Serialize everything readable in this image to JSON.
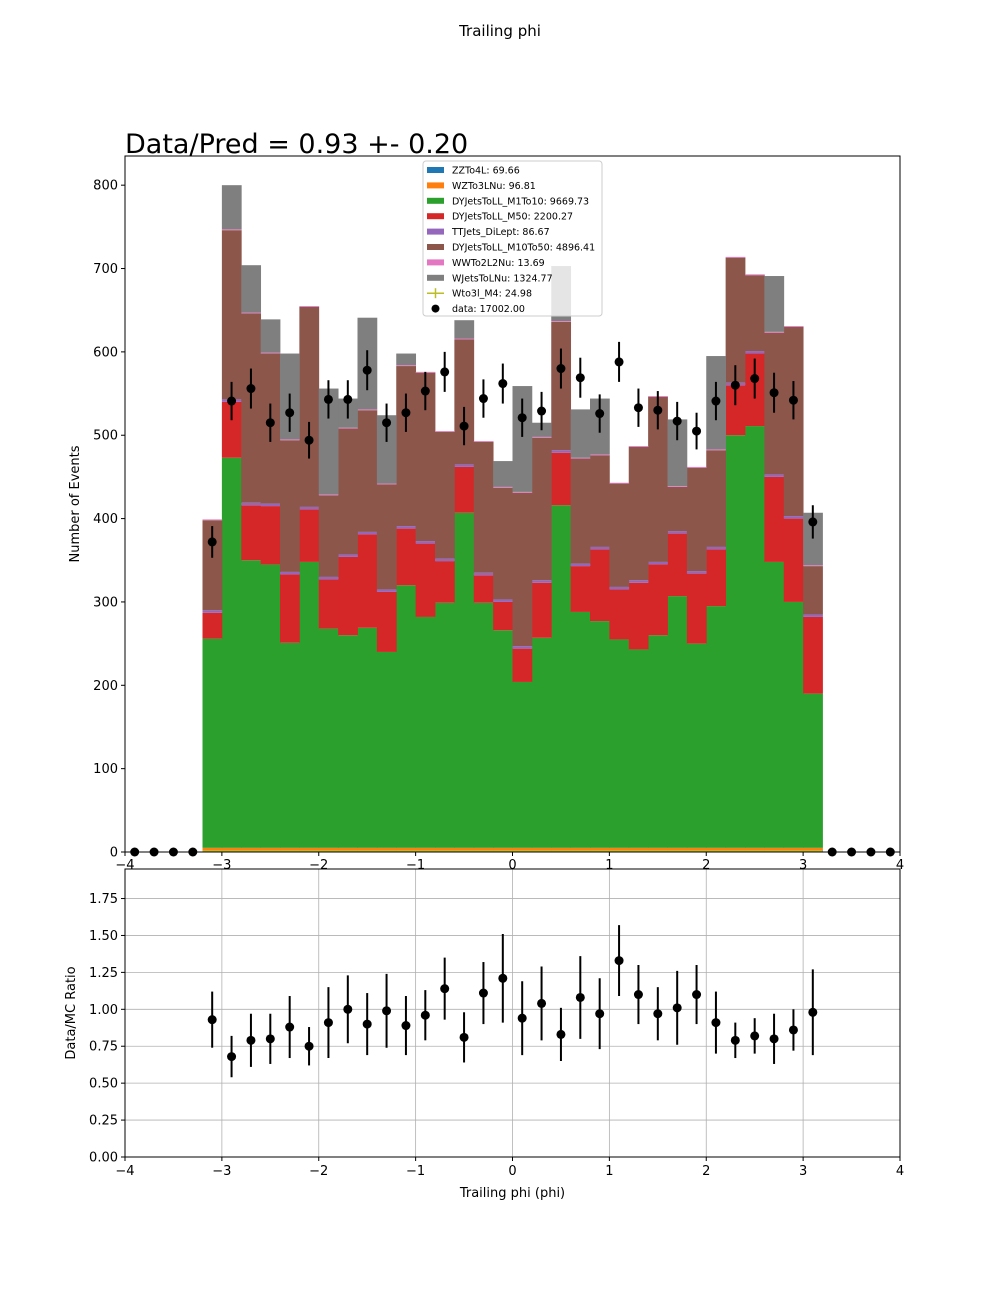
{
  "figure": {
    "title": "Trailing phi",
    "annotation": "Data/Pred = 0.93 +- 0.20"
  },
  "chart_data": [
    {
      "type": "bar",
      "stacked": true,
      "ylabel": "Number of Events",
      "xlim": [
        -4,
        4
      ],
      "ylim": [
        0,
        835
      ],
      "xticks": [
        "−4",
        "−3",
        "−2",
        "−1",
        "0",
        "1",
        "2",
        "3",
        "4"
      ],
      "yticks": [
        "0",
        "100",
        "200",
        "300",
        "400",
        "500",
        "600",
        "700",
        "800"
      ],
      "legend_position": "upper center",
      "bin_edges": [
        -3.2,
        -3.0,
        -2.8,
        -2.6,
        -2.4,
        -2.2,
        -2.0,
        -1.8,
        -1.6,
        -1.4,
        -1.2,
        -1.0,
        -0.8,
        -0.6,
        -0.4,
        -0.2,
        0.0,
        0.2,
        0.4,
        0.6,
        0.8,
        1.0,
        1.2,
        1.4,
        1.6,
        1.8,
        2.0,
        2.2,
        2.4,
        2.6,
        2.8,
        3.0,
        3.2
      ],
      "series": [
        {
          "name": "ZZTo4L: 69.66",
          "color": "#1f77b4",
          "values": [
            2,
            2,
            2,
            2,
            2,
            2,
            2,
            2,
            2,
            2,
            2,
            2,
            2,
            2,
            2,
            2,
            2,
            2,
            2,
            2,
            2,
            2,
            2,
            2,
            2,
            2,
            2,
            2,
            2,
            2,
            2,
            2
          ]
        },
        {
          "name": "WZTo3LNu: 96.81",
          "color": "#ff7f0e",
          "values": [
            3,
            3,
            3,
            3,
            3,
            3,
            3,
            3,
            3,
            3,
            3,
            3,
            3,
            3,
            3,
            3,
            3,
            3,
            3,
            3,
            3,
            3,
            3,
            3,
            3,
            3,
            3,
            3,
            3,
            3,
            3,
            3
          ]
        },
        {
          "name": "DYJetsToLL_M1To10: 9669.73",
          "color": "#2ca02c",
          "values": [
            251,
            468,
            345,
            340,
            246,
            343,
            263,
            255,
            264,
            235,
            315,
            277,
            294,
            402,
            294,
            261,
            199,
            252,
            411,
            283,
            272,
            250,
            238,
            255,
            302,
            245,
            290,
            495,
            506,
            343,
            295,
            185
          ]
        },
        {
          "name": "DYJetsToLL_M50: 2200.27",
          "color": "#d62728",
          "values": [
            31,
            67,
            66,
            70,
            82,
            63,
            59,
            94,
            112,
            72,
            68,
            88,
            50,
            55,
            33,
            34,
            40,
            66,
            63,
            55,
            86,
            60,
            80,
            85,
            75,
            84,
            68,
            60,
            87,
            102,
            100,
            92
          ]
        },
        {
          "name": "TTJets_DiLept: 86.67",
          "color": "#9467bd",
          "values": [
            3,
            3,
            3,
            3,
            3,
            3,
            3,
            3,
            3,
            3,
            3,
            3,
            3,
            3,
            3,
            3,
            3,
            3,
            3,
            3,
            3,
            3,
            3,
            3,
            3,
            3,
            3,
            3,
            3,
            3,
            3,
            3
          ]
        },
        {
          "name": "DYJetsToLL_M10To50: 4896.41",
          "color": "#8c564b",
          "values": [
            108,
            203,
            227,
            180,
            158,
            240,
            98,
            151,
            146,
            126,
            192,
            202,
            152,
            150,
            157,
            134,
            184,
            171,
            154,
            126,
            110,
            124,
            160,
            198,
            53,
            124,
            116,
            150,
            91,
            170,
            227,
            58
          ]
        },
        {
          "name": "WWTo2L2Nu: 13.69",
          "color": "#e377c2",
          "values": [
            1,
            1,
            1,
            1,
            1,
            1,
            1,
            1,
            1,
            1,
            1,
            1,
            1,
            1,
            1,
            1,
            1,
            1,
            1,
            1,
            1,
            1,
            1,
            1,
            1,
            1,
            1,
            1,
            1,
            1,
            1,
            1
          ]
        },
        {
          "name": "WJetsToLNu: 1324.77",
          "color": "#7f7f7f",
          "values": [
            0,
            53,
            57,
            40,
            103,
            0,
            127,
            35,
            110,
            82,
            14,
            0,
            0,
            22,
            0,
            31,
            127,
            17,
            66,
            58,
            67,
            0,
            0,
            0,
            80,
            0,
            112,
            0,
            0,
            67,
            0,
            63
          ]
        }
      ],
      "signal": {
        "name": "Wto3l_M4: 24.98",
        "color": "#bcbd22",
        "values": [
          1,
          1,
          1,
          1,
          1,
          1,
          1,
          1,
          1,
          1,
          1,
          1,
          1,
          1,
          1,
          1,
          1,
          1,
          1,
          1,
          1,
          1,
          1,
          1,
          1,
          1,
          1,
          1,
          1,
          1,
          1,
          1
        ]
      },
      "data": {
        "name": "data: 17002.00",
        "x": [
          -3.9,
          -3.7,
          -3.5,
          -3.3,
          -3.1,
          -2.9,
          -2.7,
          -2.5,
          -2.3,
          -2.1,
          -1.9,
          -1.7,
          -1.5,
          -1.3,
          -1.1,
          -0.9,
          -0.7,
          -0.5,
          -0.3,
          -0.1,
          0.1,
          0.3,
          0.5,
          0.7,
          0.9,
          1.1,
          1.3,
          1.5,
          1.7,
          1.9,
          2.1,
          2.3,
          2.5,
          2.7,
          2.9,
          3.1,
          3.3,
          3.5,
          3.7,
          3.9
        ],
        "y": [
          0,
          0,
          0,
          0,
          372,
          541,
          556,
          515,
          527,
          494,
          543,
          543,
          578,
          515,
          527,
          553,
          576,
          511,
          544,
          562,
          521,
          529,
          580,
          569,
          526,
          588,
          533,
          530,
          517,
          505,
          541,
          560,
          568,
          551,
          542,
          396,
          0,
          0,
          0,
          0
        ],
        "yerr": [
          0,
          0,
          0,
          0,
          19,
          23,
          24,
          23,
          23,
          22,
          23,
          23,
          24,
          23,
          23,
          23,
          24,
          23,
          23,
          24,
          23,
          23,
          24,
          24,
          23,
          24,
          23,
          23,
          23,
          22,
          23,
          24,
          24,
          24,
          23,
          20,
          0,
          0,
          0,
          0
        ]
      }
    },
    {
      "type": "scatter",
      "xlabel": "Trailing phi (phi)",
      "ylabel": "Data/MC Ratio",
      "xlim": [
        -4,
        4
      ],
      "ylim": [
        0,
        1.95
      ],
      "grid": true,
      "xticks": [
        "−4",
        "−3",
        "−2",
        "−1",
        "0",
        "1",
        "2",
        "3",
        "4"
      ],
      "yticks": [
        "0.00",
        "0.25",
        "0.50",
        "0.75",
        "1.00",
        "1.25",
        "1.50",
        "1.75"
      ],
      "x": [
        -3.1,
        -2.9,
        -2.7,
        -2.5,
        -2.3,
        -2.1,
        -1.9,
        -1.7,
        -1.5,
        -1.3,
        -1.1,
        -0.9,
        -0.7,
        -0.5,
        -0.3,
        -0.1,
        0.1,
        0.3,
        0.5,
        0.7,
        0.9,
        1.1,
        1.3,
        1.5,
        1.7,
        1.9,
        2.1,
        2.3,
        2.5,
        2.7,
        2.9,
        3.1
      ],
      "y": [
        0.93,
        0.68,
        0.79,
        0.8,
        0.88,
        0.75,
        0.91,
        1.0,
        0.9,
        0.99,
        0.89,
        0.96,
        1.14,
        0.81,
        1.11,
        1.21,
        0.94,
        1.04,
        0.83,
        1.08,
        0.97,
        1.33,
        1.1,
        0.97,
        1.01,
        1.1,
        0.91,
        0.79,
        0.82,
        0.8,
        0.86,
        0.98
      ],
      "yerr": [
        0.19,
        0.14,
        0.18,
        0.17,
        0.21,
        0.13,
        0.24,
        0.23,
        0.21,
        0.25,
        0.2,
        0.17,
        0.21,
        0.17,
        0.21,
        0.3,
        0.25,
        0.25,
        0.18,
        0.28,
        0.24,
        0.24,
        0.2,
        0.18,
        0.25,
        0.2,
        0.21,
        0.12,
        0.12,
        0.17,
        0.14,
        0.29
      ]
    }
  ]
}
